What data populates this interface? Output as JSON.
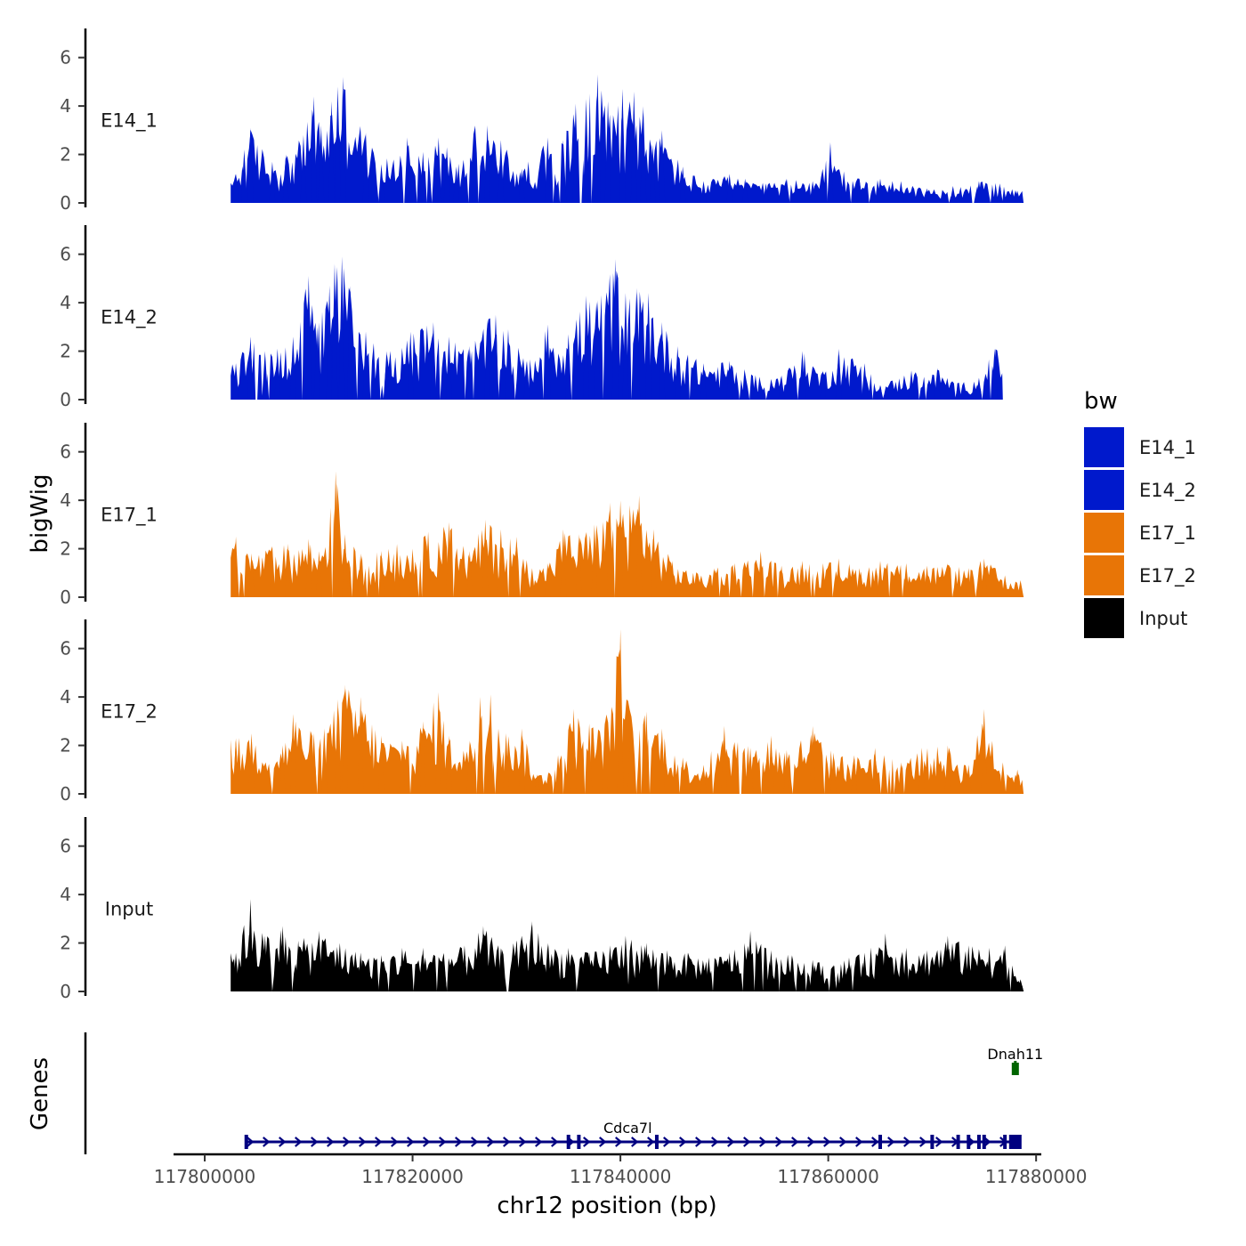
{
  "colors": {
    "E14": "#0019CC",
    "E17": "#E87506",
    "Input": "#000000",
    "gene_main": "#000080",
    "gene_other": "#006400"
  },
  "chart_data": {
    "type": "area",
    "xlabel": "chr12 position (bp)",
    "ylabel": "bigWig",
    "genes_axis_label": "Genes",
    "xlim": [
      117797000,
      117880500
    ],
    "x_ticks": [
      117800000,
      117820000,
      117840000,
      117860000,
      117880000
    ],
    "x_tick_labels": [
      "117800000",
      "117820000",
      "117840000",
      "117860000",
      "117880000"
    ],
    "ylim": [
      0,
      7.2
    ],
    "y_ticks": [
      0,
      2,
      4,
      6
    ],
    "y_tick_labels": [
      "0",
      "2",
      "4",
      "6"
    ],
    "data_range": [
      117802500,
      117878800
    ],
    "legend": {
      "title": "bw",
      "position": "right",
      "entries": [
        {
          "label": "E14_1",
          "color": "#0019CC"
        },
        {
          "label": "E14_2",
          "color": "#0019CC"
        },
        {
          "label": "E17_1",
          "color": "#E87506"
        },
        {
          "label": "E17_2",
          "color": "#E87506"
        },
        {
          "label": "Input",
          "color": "#000000"
        }
      ]
    },
    "series": [
      {
        "name": "E14_1",
        "color": "#0019CC",
        "x_end": 117878800,
        "peaks": [
          {
            "x": 117803000,
            "y": 1.2
          },
          {
            "x": 117803800,
            "y": 2.2
          },
          {
            "x": 117804400,
            "y": 3.1
          },
          {
            "x": 117806500,
            "y": 1.7
          },
          {
            "x": 117807800,
            "y": 2.0
          },
          {
            "x": 117809500,
            "y": 2.8
          },
          {
            "x": 117810500,
            "y": 4.4
          },
          {
            "x": 117811200,
            "y": 3.2
          },
          {
            "x": 117812200,
            "y": 4.2
          },
          {
            "x": 117812800,
            "y": 4.8
          },
          {
            "x": 117813300,
            "y": 5.2
          },
          {
            "x": 117815500,
            "y": 2.9
          },
          {
            "x": 117817000,
            "y": 1.6
          },
          {
            "x": 117819500,
            "y": 2.7
          },
          {
            "x": 117821000,
            "y": 2.1
          },
          {
            "x": 117822500,
            "y": 2.7
          },
          {
            "x": 117823300,
            "y": 2.3
          },
          {
            "x": 117824200,
            "y": 1.5
          },
          {
            "x": 117826000,
            "y": 3.2
          },
          {
            "x": 117827200,
            "y": 3.2
          },
          {
            "x": 117828500,
            "y": 2.6
          },
          {
            "x": 117830500,
            "y": 1.4
          },
          {
            "x": 117833000,
            "y": 2.7
          },
          {
            "x": 117834500,
            "y": 2.6
          },
          {
            "x": 117835700,
            "y": 4.1
          },
          {
            "x": 117836700,
            "y": 4.3
          },
          {
            "x": 117837800,
            "y": 5.3
          },
          {
            "x": 117838800,
            "y": 4.2
          },
          {
            "x": 117840200,
            "y": 4.7
          },
          {
            "x": 117841300,
            "y": 4.6
          },
          {
            "x": 117842200,
            "y": 4.0
          },
          {
            "x": 117843100,
            "y": 2.4
          },
          {
            "x": 117844000,
            "y": 3.0
          },
          {
            "x": 117846000,
            "y": 1.5
          },
          {
            "x": 117848000,
            "y": 0.9
          },
          {
            "x": 117850500,
            "y": 1.2
          },
          {
            "x": 117852000,
            "y": 1.0
          },
          {
            "x": 117854000,
            "y": 0.8
          },
          {
            "x": 117856000,
            "y": 1.0
          },
          {
            "x": 117858500,
            "y": 0.9
          },
          {
            "x": 117860200,
            "y": 2.5
          },
          {
            "x": 117861500,
            "y": 1.3
          },
          {
            "x": 117863000,
            "y": 1.0
          },
          {
            "x": 117865000,
            "y": 1.0
          },
          {
            "x": 117867000,
            "y": 0.9
          },
          {
            "x": 117869500,
            "y": 0.6
          },
          {
            "x": 117872000,
            "y": 0.7
          },
          {
            "x": 117874500,
            "y": 0.9
          },
          {
            "x": 117876500,
            "y": 0.8
          },
          {
            "x": 117878200,
            "y": 0.5
          }
        ]
      },
      {
        "name": "E14_2",
        "color": "#0019CC",
        "x_end": 117876800,
        "peaks": [
          {
            "x": 117803000,
            "y": 1.5
          },
          {
            "x": 117804400,
            "y": 2.6
          },
          {
            "x": 117805800,
            "y": 2.0
          },
          {
            "x": 117807000,
            "y": 2.1
          },
          {
            "x": 117808500,
            "y": 2.6
          },
          {
            "x": 117810000,
            "y": 5.1
          },
          {
            "x": 117810800,
            "y": 3.0
          },
          {
            "x": 117812000,
            "y": 4.7
          },
          {
            "x": 117812500,
            "y": 5.6
          },
          {
            "x": 117813200,
            "y": 5.9
          },
          {
            "x": 117814000,
            "y": 4.7
          },
          {
            "x": 117815500,
            "y": 2.8
          },
          {
            "x": 117817500,
            "y": 2.0
          },
          {
            "x": 117819800,
            "y": 2.8
          },
          {
            "x": 117822000,
            "y": 3.2
          },
          {
            "x": 117823500,
            "y": 2.6
          },
          {
            "x": 117825500,
            "y": 2.2
          },
          {
            "x": 117827200,
            "y": 3.3
          },
          {
            "x": 117828000,
            "y": 3.5
          },
          {
            "x": 117829200,
            "y": 2.9
          },
          {
            "x": 117831000,
            "y": 1.6
          },
          {
            "x": 117833000,
            "y": 3.1
          },
          {
            "x": 117835000,
            "y": 2.7
          },
          {
            "x": 117836700,
            "y": 4.3
          },
          {
            "x": 117837800,
            "y": 4.1
          },
          {
            "x": 117839500,
            "y": 5.8
          },
          {
            "x": 117840500,
            "y": 4.4
          },
          {
            "x": 117841600,
            "y": 4.6
          },
          {
            "x": 117842700,
            "y": 4.4
          },
          {
            "x": 117844000,
            "y": 3.2
          },
          {
            "x": 117845500,
            "y": 2.2
          },
          {
            "x": 117848000,
            "y": 1.5
          },
          {
            "x": 117850500,
            "y": 1.6
          },
          {
            "x": 117853000,
            "y": 1.0
          },
          {
            "x": 117855500,
            "y": 1.0
          },
          {
            "x": 117857500,
            "y": 2.0
          },
          {
            "x": 117859500,
            "y": 1.2
          },
          {
            "x": 117861000,
            "y": 2.1
          },
          {
            "x": 117863500,
            "y": 1.5
          },
          {
            "x": 117865000,
            "y": 0.6
          },
          {
            "x": 117868000,
            "y": 1.2
          },
          {
            "x": 117870500,
            "y": 1.3
          },
          {
            "x": 117872500,
            "y": 0.7
          },
          {
            "x": 117874500,
            "y": 0.9
          },
          {
            "x": 117876000,
            "y": 2.1
          }
        ]
      },
      {
        "name": "E17_1",
        "color": "#E87506",
        "x_end": 117878800,
        "peaks": [
          {
            "x": 117803000,
            "y": 2.5
          },
          {
            "x": 117804500,
            "y": 1.8
          },
          {
            "x": 117806500,
            "y": 2.1
          },
          {
            "x": 117808000,
            "y": 2.2
          },
          {
            "x": 117810000,
            "y": 2.4
          },
          {
            "x": 117811000,
            "y": 1.9
          },
          {
            "x": 117812600,
            "y": 5.2
          },
          {
            "x": 117813500,
            "y": 2.6
          },
          {
            "x": 117815000,
            "y": 1.8
          },
          {
            "x": 117817000,
            "y": 1.9
          },
          {
            "x": 117818500,
            "y": 2.2
          },
          {
            "x": 117820000,
            "y": 2.0
          },
          {
            "x": 117821500,
            "y": 2.7
          },
          {
            "x": 117823500,
            "y": 3.1
          },
          {
            "x": 117825500,
            "y": 1.9
          },
          {
            "x": 117827000,
            "y": 3.2
          },
          {
            "x": 117828500,
            "y": 2.8
          },
          {
            "x": 117830000,
            "y": 2.5
          },
          {
            "x": 117831500,
            "y": 1.2
          },
          {
            "x": 117833000,
            "y": 1.4
          },
          {
            "x": 117834500,
            "y": 2.8
          },
          {
            "x": 117836000,
            "y": 2.6
          },
          {
            "x": 117837500,
            "y": 3.0
          },
          {
            "x": 117839000,
            "y": 3.9
          },
          {
            "x": 117840000,
            "y": 4.0
          },
          {
            "x": 117841800,
            "y": 4.2
          },
          {
            "x": 117843200,
            "y": 2.8
          },
          {
            "x": 117845000,
            "y": 1.5
          },
          {
            "x": 117847000,
            "y": 1.0
          },
          {
            "x": 117849000,
            "y": 1.2
          },
          {
            "x": 117851000,
            "y": 1.4
          },
          {
            "x": 117853500,
            "y": 1.9
          },
          {
            "x": 117855500,
            "y": 1.3
          },
          {
            "x": 117857500,
            "y": 1.5
          },
          {
            "x": 117859500,
            "y": 1.4
          },
          {
            "x": 117861000,
            "y": 1.6
          },
          {
            "x": 117863000,
            "y": 1.2
          },
          {
            "x": 117865000,
            "y": 1.5
          },
          {
            "x": 117867500,
            "y": 1.4
          },
          {
            "x": 117869500,
            "y": 1.3
          },
          {
            "x": 117871500,
            "y": 1.4
          },
          {
            "x": 117873500,
            "y": 1.2
          },
          {
            "x": 117875000,
            "y": 1.6
          },
          {
            "x": 117877000,
            "y": 0.9
          },
          {
            "x": 117878500,
            "y": 0.7
          }
        ]
      },
      {
        "name": "E17_2",
        "color": "#E87506",
        "x_end": 117878800,
        "peaks": [
          {
            "x": 117803000,
            "y": 2.3
          },
          {
            "x": 117804500,
            "y": 2.5
          },
          {
            "x": 117807500,
            "y": 2.0
          },
          {
            "x": 117808500,
            "y": 3.3
          },
          {
            "x": 117810500,
            "y": 2.5
          },
          {
            "x": 117811500,
            "y": 2.7
          },
          {
            "x": 117812800,
            "y": 3.9
          },
          {
            "x": 117813500,
            "y": 4.5
          },
          {
            "x": 117815000,
            "y": 4.0
          },
          {
            "x": 117817000,
            "y": 2.4
          },
          {
            "x": 117819000,
            "y": 2.2
          },
          {
            "x": 117821000,
            "y": 3.0
          },
          {
            "x": 117822500,
            "y": 4.2
          },
          {
            "x": 117823500,
            "y": 2.4
          },
          {
            "x": 117825500,
            "y": 2.2
          },
          {
            "x": 117826500,
            "y": 4.0
          },
          {
            "x": 117827500,
            "y": 4.1
          },
          {
            "x": 117829000,
            "y": 2.5
          },
          {
            "x": 117830500,
            "y": 2.7
          },
          {
            "x": 117832000,
            "y": 0.8
          },
          {
            "x": 117834000,
            "y": 1.6
          },
          {
            "x": 117835500,
            "y": 3.5
          },
          {
            "x": 117837000,
            "y": 2.9
          },
          {
            "x": 117838500,
            "y": 3.0
          },
          {
            "x": 117840000,
            "y": 6.8
          },
          {
            "x": 117841000,
            "y": 3.3
          },
          {
            "x": 117842500,
            "y": 3.4
          },
          {
            "x": 117844000,
            "y": 2.7
          },
          {
            "x": 117846000,
            "y": 1.5
          },
          {
            "x": 117848000,
            "y": 1.2
          },
          {
            "x": 117850000,
            "y": 2.8
          },
          {
            "x": 117852500,
            "y": 1.9
          },
          {
            "x": 117854500,
            "y": 2.4
          },
          {
            "x": 117856000,
            "y": 1.8
          },
          {
            "x": 117858500,
            "y": 2.8
          },
          {
            "x": 117860500,
            "y": 1.7
          },
          {
            "x": 117862500,
            "y": 1.6
          },
          {
            "x": 117864500,
            "y": 1.9
          },
          {
            "x": 117867000,
            "y": 1.3
          },
          {
            "x": 117869000,
            "y": 1.9
          },
          {
            "x": 117871500,
            "y": 2.0
          },
          {
            "x": 117873500,
            "y": 1.2
          },
          {
            "x": 117875000,
            "y": 3.5
          },
          {
            "x": 117876800,
            "y": 1.3
          },
          {
            "x": 117878200,
            "y": 1.0
          }
        ]
      },
      {
        "name": "Input",
        "color": "#000000",
        "x_end": 117878800,
        "peaks": [
          {
            "x": 117803000,
            "y": 1.6
          },
          {
            "x": 117804400,
            "y": 3.8
          },
          {
            "x": 117805800,
            "y": 2.3
          },
          {
            "x": 117807500,
            "y": 2.7
          },
          {
            "x": 117809000,
            "y": 2.1
          },
          {
            "x": 117811000,
            "y": 2.5
          },
          {
            "x": 117813000,
            "y": 2.0
          },
          {
            "x": 117815000,
            "y": 1.6
          },
          {
            "x": 117817000,
            "y": 1.5
          },
          {
            "x": 117819000,
            "y": 1.8
          },
          {
            "x": 117821000,
            "y": 1.8
          },
          {
            "x": 117823000,
            "y": 1.6
          },
          {
            "x": 117825000,
            "y": 1.9
          },
          {
            "x": 117826800,
            "y": 2.7
          },
          {
            "x": 117828500,
            "y": 1.8
          },
          {
            "x": 117830000,
            "y": 2.1
          },
          {
            "x": 117831500,
            "y": 2.9
          },
          {
            "x": 117833000,
            "y": 2.0
          },
          {
            "x": 117835000,
            "y": 1.8
          },
          {
            "x": 117837000,
            "y": 1.6
          },
          {
            "x": 117839000,
            "y": 1.9
          },
          {
            "x": 117840500,
            "y": 2.3
          },
          {
            "x": 117842500,
            "y": 2.0
          },
          {
            "x": 117844500,
            "y": 1.7
          },
          {
            "x": 117846500,
            "y": 1.6
          },
          {
            "x": 117848500,
            "y": 1.4
          },
          {
            "x": 117850500,
            "y": 1.6
          },
          {
            "x": 117852500,
            "y": 2.5
          },
          {
            "x": 117854500,
            "y": 1.7
          },
          {
            "x": 117856500,
            "y": 1.5
          },
          {
            "x": 117858500,
            "y": 1.3
          },
          {
            "x": 117860500,
            "y": 1.1
          },
          {
            "x": 117862000,
            "y": 1.4
          },
          {
            "x": 117863500,
            "y": 1.6
          },
          {
            "x": 117865500,
            "y": 2.4
          },
          {
            "x": 117867500,
            "y": 1.8
          },
          {
            "x": 117869500,
            "y": 1.7
          },
          {
            "x": 117871500,
            "y": 2.3
          },
          {
            "x": 117873500,
            "y": 1.9
          },
          {
            "x": 117875500,
            "y": 1.8
          },
          {
            "x": 117877000,
            "y": 1.9
          },
          {
            "x": 117878500,
            "y": 0.5
          }
        ]
      }
    ],
    "genes": [
      {
        "name": "Cdca7l",
        "color": "#000080",
        "strand": "+",
        "start": 117804000,
        "end": 117878300,
        "exons": [
          117804000,
          117835000,
          117836000,
          117843500,
          117865000,
          117870000,
          117872500,
          117873500,
          117874500,
          117875000,
          117877000,
          117878000
        ]
      },
      {
        "name": "Dnah11",
        "color": "#006400",
        "strand": "+",
        "start": 117877700,
        "end": 117878300,
        "exons": [
          117878000
        ]
      }
    ]
  }
}
